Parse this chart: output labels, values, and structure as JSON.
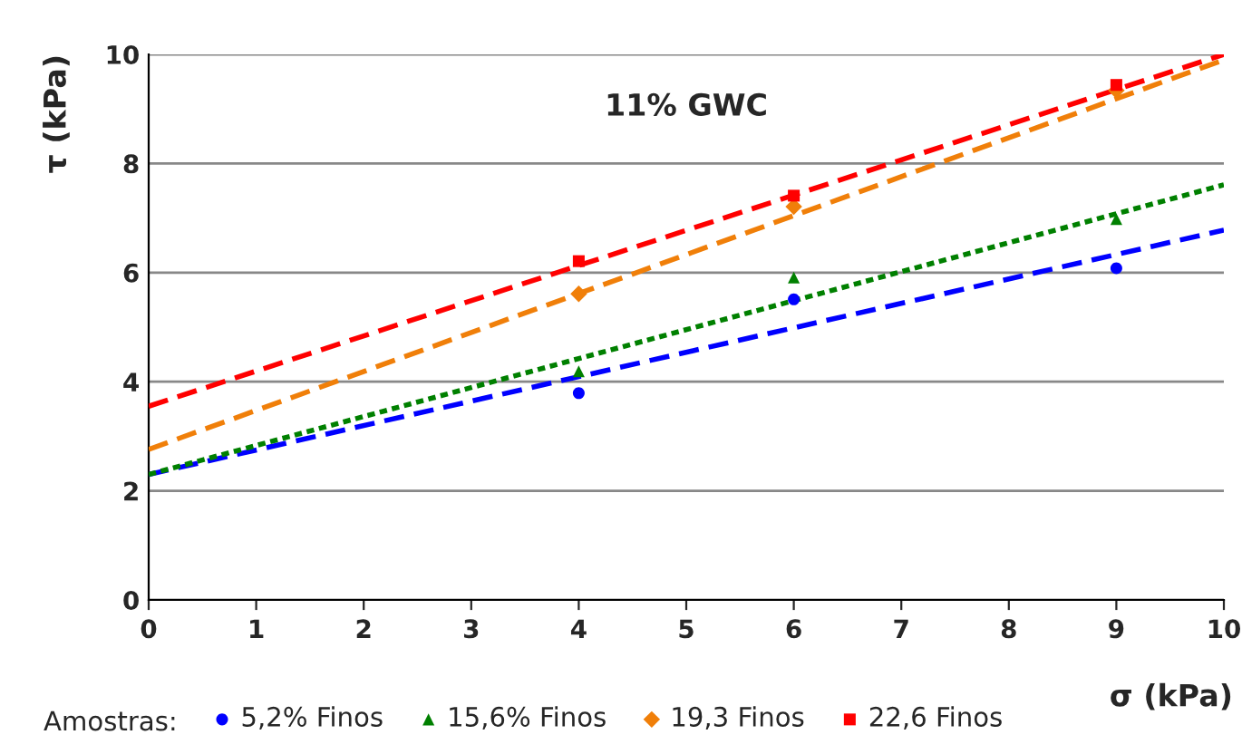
{
  "chart_data": {
    "type": "scatter",
    "title": "11% GWC",
    "xlabel": "σ (kPa)",
    "ylabel": "τ (kPa)",
    "legend_title": "Amostras:",
    "xlim": [
      0,
      10
    ],
    "ylim": [
      0,
      10
    ],
    "xticks": [
      0,
      1,
      2,
      3,
      4,
      5,
      6,
      7,
      8,
      9,
      10
    ],
    "yticks": [
      0,
      2,
      4,
      6,
      8,
      10
    ],
    "grid": "y",
    "legend": "bottom",
    "series": [
      {
        "name": "5,2% Finos",
        "color": "#0000ff",
        "marker": "circle",
        "x": [
          4,
          6,
          9
        ],
        "values": [
          3.79,
          5.51,
          6.08
        ]
      },
      {
        "name": "15,6% Finos",
        "color": "#008000",
        "marker": "triangle",
        "x": [
          4,
          6,
          9
        ],
        "values": [
          4.19,
          5.91,
          6.98
        ]
      },
      {
        "name": "19,3 Finos",
        "color": "#f07f09",
        "marker": "diamond",
        "x": [
          4,
          6,
          9
        ],
        "values": [
          5.61,
          7.21,
          9.34
        ]
      },
      {
        "name": "22,6 Finos",
        "color": "#ff0000",
        "marker": "square",
        "x": [
          4,
          6,
          9
        ],
        "values": [
          6.21,
          7.41,
          9.44
        ]
      },
      {
        "type": "line",
        "color": "#0000ff",
        "line_style": "dashed",
        "x": [
          0,
          10
        ],
        "values": [
          2.3,
          6.78
        ]
      },
      {
        "type": "line",
        "color": "#008000",
        "line_style": "dotted",
        "x": [
          0,
          10
        ],
        "values": [
          2.3,
          7.61
        ]
      },
      {
        "type": "line",
        "color": "#f07f09",
        "line_style": "dashed",
        "x": [
          0,
          10
        ],
        "values": [
          2.76,
          9.9
        ]
      },
      {
        "type": "line",
        "color": "#ff0000",
        "line_style": "dashed",
        "x": [
          0,
          10
        ],
        "values": [
          3.55,
          10.0
        ]
      }
    ]
  }
}
